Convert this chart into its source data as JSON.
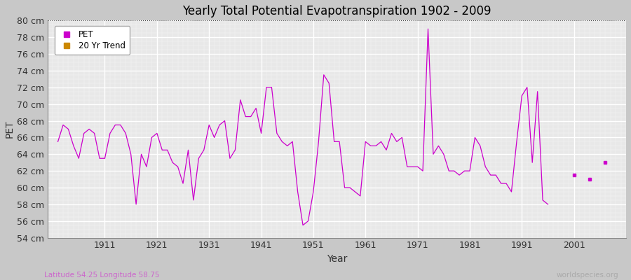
{
  "title": "Yearly Total Potential Evapotranspiration 1902 - 2009",
  "ylabel": "PET",
  "xlabel": "Year",
  "subtitle_left": "Latitude 54.25 Longitude 58.75",
  "subtitle_right": "worldspecies.org",
  "ylim": [
    54,
    80
  ],
  "ytick_step": 2,
  "line_color": "#cc00cc",
  "trend_color": "#cc8800",
  "fig_bg_color": "#c8c8c8",
  "plot_bg_color": "#e8e8e8",
  "connected_end_year": 1996,
  "xticks": [
    1911,
    1921,
    1931,
    1941,
    1951,
    1961,
    1971,
    1981,
    1991,
    2001
  ],
  "xlim": [
    1900,
    2011
  ],
  "years": [
    1902,
    1903,
    1904,
    1905,
    1906,
    1907,
    1908,
    1909,
    1910,
    1911,
    1912,
    1913,
    1914,
    1915,
    1916,
    1917,
    1918,
    1919,
    1920,
    1921,
    1922,
    1923,
    1924,
    1925,
    1926,
    1927,
    1928,
    1929,
    1930,
    1931,
    1932,
    1933,
    1934,
    1935,
    1936,
    1937,
    1938,
    1939,
    1940,
    1941,
    1942,
    1943,
    1944,
    1945,
    1946,
    1947,
    1948,
    1949,
    1950,
    1951,
    1952,
    1953,
    1954,
    1955,
    1956,
    1957,
    1958,
    1959,
    1960,
    1961,
    1962,
    1963,
    1964,
    1965,
    1966,
    1967,
    1968,
    1969,
    1970,
    1971,
    1972,
    1973,
    1974,
    1975,
    1976,
    1977,
    1978,
    1979,
    1980,
    1981,
    1982,
    1983,
    1984,
    1985,
    1986,
    1987,
    1988,
    1989,
    1990,
    1991,
    1992,
    1993,
    1994,
    1995,
    1996
  ],
  "pet": [
    65.5,
    67.5,
    67.0,
    65.0,
    63.5,
    66.5,
    67.0,
    66.5,
    63.5,
    63.5,
    66.5,
    67.5,
    67.5,
    66.5,
    64.0,
    58.0,
    64.0,
    62.5,
    66.0,
    66.5,
    64.5,
    64.5,
    63.0,
    62.5,
    60.5,
    64.5,
    58.5,
    63.5,
    64.5,
    67.5,
    66.0,
    67.5,
    68.0,
    63.5,
    64.5,
    70.5,
    68.5,
    68.5,
    69.5,
    66.5,
    72.0,
    72.0,
    66.5,
    65.5,
    65.0,
    65.5,
    59.5,
    55.5,
    56.0,
    59.5,
    65.5,
    73.5,
    72.5,
    65.5,
    65.5,
    60.0,
    60.0,
    59.5,
    59.0,
    65.5,
    65.0,
    65.0,
    65.5,
    64.5,
    66.5,
    65.5,
    66.0,
    62.5,
    62.5,
    62.5,
    62.0,
    79.0,
    64.0,
    65.0,
    64.0,
    62.0,
    62.0,
    61.5,
    62.0,
    62.0,
    66.0,
    65.0,
    62.5,
    61.5,
    61.5,
    60.5,
    60.5,
    59.5,
    65.5,
    71.0,
    72.0,
    63.0,
    71.5,
    58.5,
    58.0
  ],
  "isolated_years": [
    2001,
    2004,
    2007
  ],
  "isolated_pet": [
    61.5,
    61.0,
    63.0
  ]
}
